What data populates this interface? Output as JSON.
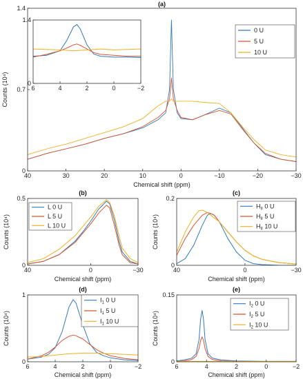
{
  "colors": {
    "blue": "#2E78C0",
    "red": "#D9532B",
    "yellow": "#EDB120"
  },
  "chart_data": [
    {
      "id": "a",
      "type": "line",
      "title": "(a)",
      "xlabel": "Chemical shift (ppm)",
      "ylabel": "Counts (10⁴)",
      "xlim": [
        40,
        -30
      ],
      "ylim": [
        0,
        1.4
      ],
      "xticks": [
        40,
        30,
        20,
        10,
        0,
        -10,
        -20,
        -30
      ],
      "yticks": [
        0,
        0.7,
        1.4
      ],
      "legend": {
        "position": "top-right",
        "entries": [
          {
            "text": "0 U"
          },
          {
            "text": "5 U"
          },
          {
            "text": "10 U"
          }
        ]
      },
      "series": [
        {
          "name": "0 U",
          "color": "blue",
          "x": [
            40,
            35,
            30,
            25,
            20,
            15,
            10,
            6,
            4,
            3,
            2.5,
            2,
            1,
            0,
            -3,
            -6,
            -10,
            -13,
            -16,
            -19,
            -22,
            -26,
            -30
          ],
          "y": [
            0.1,
            0.15,
            0.19,
            0.23,
            0.28,
            0.32,
            0.37,
            0.44,
            0.5,
            0.7,
            1.3,
            0.7,
            0.5,
            0.45,
            0.44,
            0.48,
            0.54,
            0.5,
            0.37,
            0.24,
            0.14,
            0.1,
            0.08
          ]
        },
        {
          "name": "5 U",
          "color": "red",
          "x": [
            40,
            35,
            30,
            25,
            20,
            15,
            10,
            6,
            4,
            3,
            2.5,
            2,
            1,
            0,
            -3,
            -6,
            -10,
            -13,
            -16,
            -19,
            -22,
            -26,
            -30
          ],
          "y": [
            0.1,
            0.15,
            0.19,
            0.23,
            0.28,
            0.32,
            0.38,
            0.46,
            0.52,
            0.62,
            0.8,
            0.62,
            0.52,
            0.46,
            0.44,
            0.48,
            0.52,
            0.49,
            0.36,
            0.24,
            0.15,
            0.1,
            0.08
          ]
        },
        {
          "name": "10 U",
          "color": "yellow",
          "x": [
            40,
            35,
            30,
            25,
            20,
            15,
            10,
            6,
            4,
            3,
            2.5,
            2,
            1,
            0,
            -3,
            -6,
            -10,
            -13,
            -16,
            -19,
            -22,
            -26,
            -30
          ],
          "y": [
            0.14,
            0.19,
            0.23,
            0.28,
            0.33,
            0.38,
            0.45,
            0.56,
            0.6,
            0.6,
            0.62,
            0.6,
            0.6,
            0.6,
            0.6,
            0.59,
            0.58,
            0.5,
            0.38,
            0.27,
            0.18,
            0.14,
            0.12
          ]
        }
      ]
    },
    {
      "id": "a-inset",
      "type": "line",
      "title": "",
      "xlim": [
        6,
        -2
      ],
      "ylim": [
        0,
        1.4
      ],
      "xticks": [
        6,
        4,
        2,
        0,
        -2
      ],
      "yticks": [
        0,
        1.4
      ],
      "series": [
        {
          "name": "0 U",
          "color": "blue",
          "x": [
            6,
            5,
            4,
            3.5,
            3,
            2.75,
            2.5,
            2,
            1.5,
            1,
            0,
            -1,
            -2
          ],
          "y": [
            0.6,
            0.62,
            0.72,
            0.95,
            1.25,
            1.3,
            1.2,
            0.85,
            0.65,
            0.6,
            0.58,
            0.58,
            0.57
          ]
        },
        {
          "name": "5 U",
          "color": "red",
          "x": [
            6,
            5,
            4,
            3.5,
            3,
            2.75,
            2.5,
            2,
            1.5,
            1,
            0,
            -1,
            -2
          ],
          "y": [
            0.58,
            0.64,
            0.72,
            0.78,
            0.85,
            0.87,
            0.84,
            0.76,
            0.68,
            0.64,
            0.62,
            0.6,
            0.6
          ]
        },
        {
          "name": "10 U",
          "color": "yellow",
          "x": [
            6,
            5,
            4,
            3,
            2,
            1,
            0,
            -1,
            -2
          ],
          "y": [
            0.76,
            0.75,
            0.74,
            0.72,
            0.74,
            0.76,
            0.74,
            0.75,
            0.76
          ]
        }
      ]
    },
    {
      "id": "b",
      "type": "line",
      "title": "(b)",
      "xlabel": "Chemical shift (ppm)",
      "ylabel": "Counts (10⁴)",
      "xlim": [
        40,
        -30
      ],
      "ylim": [
        0,
        0.5
      ],
      "xticks": [
        40,
        0,
        -30
      ],
      "yticks": [
        0,
        0.5
      ],
      "legend": {
        "position": "top-left",
        "entries": [
          {
            "text": "L  0 U"
          },
          {
            "text": "L  5 U"
          },
          {
            "text": "L 10 U"
          }
        ]
      },
      "series": [
        {
          "name": "L 0 U",
          "color": "blue",
          "x": [
            40,
            30,
            20,
            10,
            5,
            0,
            -5,
            -10,
            -12,
            -15,
            -18,
            -20,
            -25,
            -30
          ],
          "y": [
            0.01,
            0.03,
            0.08,
            0.18,
            0.25,
            0.33,
            0.42,
            0.48,
            0.46,
            0.34,
            0.18,
            0.1,
            0.03,
            0.01
          ]
        },
        {
          "name": "L 5 U",
          "color": "red",
          "x": [
            40,
            30,
            20,
            10,
            5,
            0,
            -5,
            -10,
            -12,
            -15,
            -18,
            -20,
            -25,
            -30
          ],
          "y": [
            0.01,
            0.03,
            0.08,
            0.17,
            0.24,
            0.31,
            0.39,
            0.45,
            0.43,
            0.3,
            0.15,
            0.08,
            0.02,
            0.01
          ]
        },
        {
          "name": "L 10 U",
          "color": "yellow",
          "x": [
            40,
            30,
            20,
            10,
            5,
            0,
            -5,
            -10,
            -12,
            -15,
            -18,
            -20,
            -25,
            -30
          ],
          "y": [
            0.02,
            0.05,
            0.12,
            0.22,
            0.29,
            0.36,
            0.44,
            0.49,
            0.47,
            0.37,
            0.22,
            0.13,
            0.05,
            0.02
          ]
        }
      ]
    },
    {
      "id": "c",
      "type": "line",
      "title": "(c)",
      "xlabel": "Chemical shift (ppm)",
      "ylabel": "Counts (10⁴)",
      "xlim": [
        40,
        -30
      ],
      "ylim": [
        0,
        0.2
      ],
      "xticks": [
        40,
        0,
        -30
      ],
      "yticks": [
        0,
        0.2
      ],
      "legend": {
        "position": "top-right",
        "entries": [
          {
            "text": "H",
            "sub": "II",
            "rest": "  0 U"
          },
          {
            "text": "H",
            "sub": "II",
            "rest": "  5 U"
          },
          {
            "text": "H",
            "sub": "II",
            "rest": " 10 U"
          }
        ]
      },
      "series": [
        {
          "name": "HII 0 U",
          "color": "blue",
          "x": [
            40,
            35,
            30,
            25,
            22,
            20,
            18,
            15,
            10,
            5,
            0,
            -5,
            -10,
            -20,
            -30
          ],
          "y": [
            0.005,
            0.02,
            0.06,
            0.12,
            0.15,
            0.155,
            0.15,
            0.13,
            0.08,
            0.04,
            0.015,
            0.005,
            0.002,
            0.0,
            0.0
          ]
        },
        {
          "name": "HII 5 U",
          "color": "red",
          "x": [
            40,
            35,
            30,
            25,
            22,
            20,
            18,
            15,
            10,
            5,
            0,
            -5,
            -10,
            -20,
            -30
          ],
          "y": [
            0.03,
            0.08,
            0.12,
            0.15,
            0.158,
            0.155,
            0.15,
            0.13,
            0.1,
            0.07,
            0.045,
            0.028,
            0.018,
            0.008,
            0.004
          ]
        },
        {
          "name": "HII 10 U",
          "color": "yellow",
          "x": [
            40,
            35,
            30,
            27,
            25,
            22,
            20,
            15,
            10,
            5,
            0,
            -5,
            -10,
            -20,
            -30
          ],
          "y": [
            0.04,
            0.1,
            0.145,
            0.163,
            0.165,
            0.158,
            0.15,
            0.13,
            0.1,
            0.07,
            0.045,
            0.028,
            0.018,
            0.008,
            0.004
          ]
        }
      ]
    },
    {
      "id": "d",
      "type": "line",
      "title": "(d)",
      "xlabel": "Chemical shift (ppm)",
      "ylabel": "Counts (10⁴)",
      "xlim": [
        6,
        -2
      ],
      "ylim": [
        0,
        1
      ],
      "xticks": [
        6,
        4,
        2,
        0,
        -2
      ],
      "yticks": [
        0,
        1
      ],
      "legend": {
        "position": "top-right",
        "entries": [
          {
            "text": "I",
            "sub": "1",
            "rest": "  0 U"
          },
          {
            "text": "I",
            "sub": "1",
            "rest": "  5 U"
          },
          {
            "text": "I",
            "sub": "1",
            "rest": " 10 U"
          }
        ]
      },
      "series": [
        {
          "name": "I1 0 U",
          "color": "blue",
          "x": [
            6,
            5,
            4.5,
            4,
            3.5,
            3,
            2.7,
            2.5,
            2,
            1.5,
            1,
            0.5,
            0,
            -1,
            -2
          ],
          "y": [
            0.04,
            0.07,
            0.11,
            0.21,
            0.45,
            0.82,
            0.93,
            0.88,
            0.55,
            0.27,
            0.14,
            0.09,
            0.06,
            0.03,
            0.02
          ]
        },
        {
          "name": "I1 5 U",
          "color": "red",
          "x": [
            6,
            5,
            4.5,
            4,
            3.5,
            3,
            2.7,
            2.5,
            2,
            1.5,
            1,
            0.5,
            0,
            -1,
            -2
          ],
          "y": [
            0.04,
            0.09,
            0.14,
            0.22,
            0.32,
            0.38,
            0.4,
            0.39,
            0.34,
            0.26,
            0.18,
            0.13,
            0.09,
            0.05,
            0.03
          ]
        },
        {
          "name": "I1 10 U",
          "color": "yellow",
          "x": [
            6,
            5,
            4,
            3,
            2,
            1,
            0,
            -1,
            -2
          ],
          "y": [
            0.07,
            0.08,
            0.1,
            0.12,
            0.13,
            0.13,
            0.12,
            0.11,
            0.1
          ]
        }
      ]
    },
    {
      "id": "e",
      "type": "line",
      "title": "(e)",
      "xlabel": "Chemical shift (ppm)",
      "ylabel": "Counts (10⁴)",
      "xlim": [
        6,
        -2
      ],
      "ylim": [
        0,
        0.15
      ],
      "xticks": [
        6,
        4,
        2,
        0,
        -2
      ],
      "yticks": [
        0,
        0.15
      ],
      "legend": {
        "position": "top-right",
        "entries": [
          {
            "text": "I",
            "sub": "2",
            "rest": "  0 U"
          },
          {
            "text": "I",
            "sub": "2",
            "rest": "  5 U"
          },
          {
            "text": "I",
            "sub": "2",
            "rest": " 10 U"
          }
        ]
      },
      "series": [
        {
          "name": "I2 0 U",
          "color": "blue",
          "x": [
            6,
            5.5,
            5,
            4.7,
            4.5,
            4.4,
            4.3,
            4.2,
            4.1,
            3.9,
            3.6,
            3,
            2,
            0,
            -2
          ],
          "y": [
            0.002,
            0.004,
            0.008,
            0.018,
            0.05,
            0.095,
            0.115,
            0.095,
            0.05,
            0.018,
            0.008,
            0.004,
            0.002,
            0.001,
            0.001
          ]
        },
        {
          "name": "I2 5 U",
          "color": "red",
          "x": [
            6,
            5.5,
            5,
            4.7,
            4.5,
            4.4,
            4.3,
            4.2,
            4.1,
            3.9,
            3.6,
            3,
            2,
            0,
            -2
          ],
          "y": [
            0.001,
            0.002,
            0.005,
            0.012,
            0.03,
            0.048,
            0.056,
            0.048,
            0.03,
            0.012,
            0.005,
            0.002,
            0.001,
            0.0,
            0.0
          ]
        },
        {
          "name": "I2 10 U",
          "color": "yellow",
          "x": [
            6,
            4,
            2,
            0,
            -2
          ],
          "y": [
            0.001,
            0.001,
            0.001,
            0.001,
            0.001
          ]
        }
      ]
    }
  ]
}
